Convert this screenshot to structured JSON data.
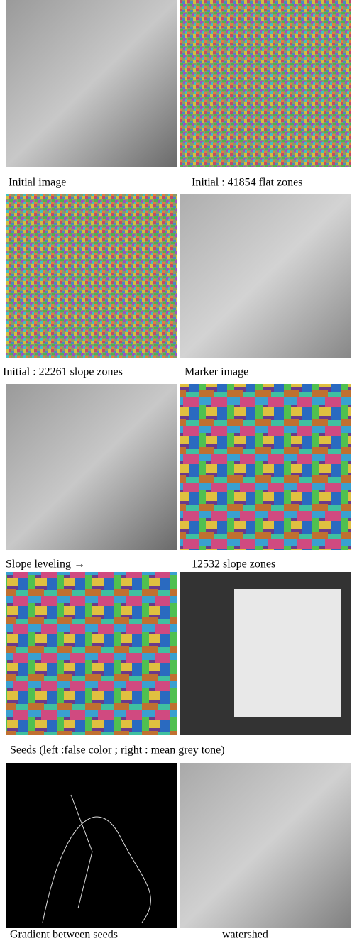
{
  "rows": [
    {
      "captions": [
        "Initial image",
        "Initial :  41854 flat zones"
      ]
    },
    {
      "captions": [
        "Initial : 22261 slope zones",
        "Marker image"
      ]
    },
    {
      "captions": [
        "Slope leveling  →",
        "12532 slope zones"
      ]
    },
    {
      "captions": [
        "Seeds   (left :false color ; right : mean grey tone)"
      ]
    },
    {
      "captions": [
        "Gradient between seeds",
        "watershed"
      ]
    }
  ]
}
